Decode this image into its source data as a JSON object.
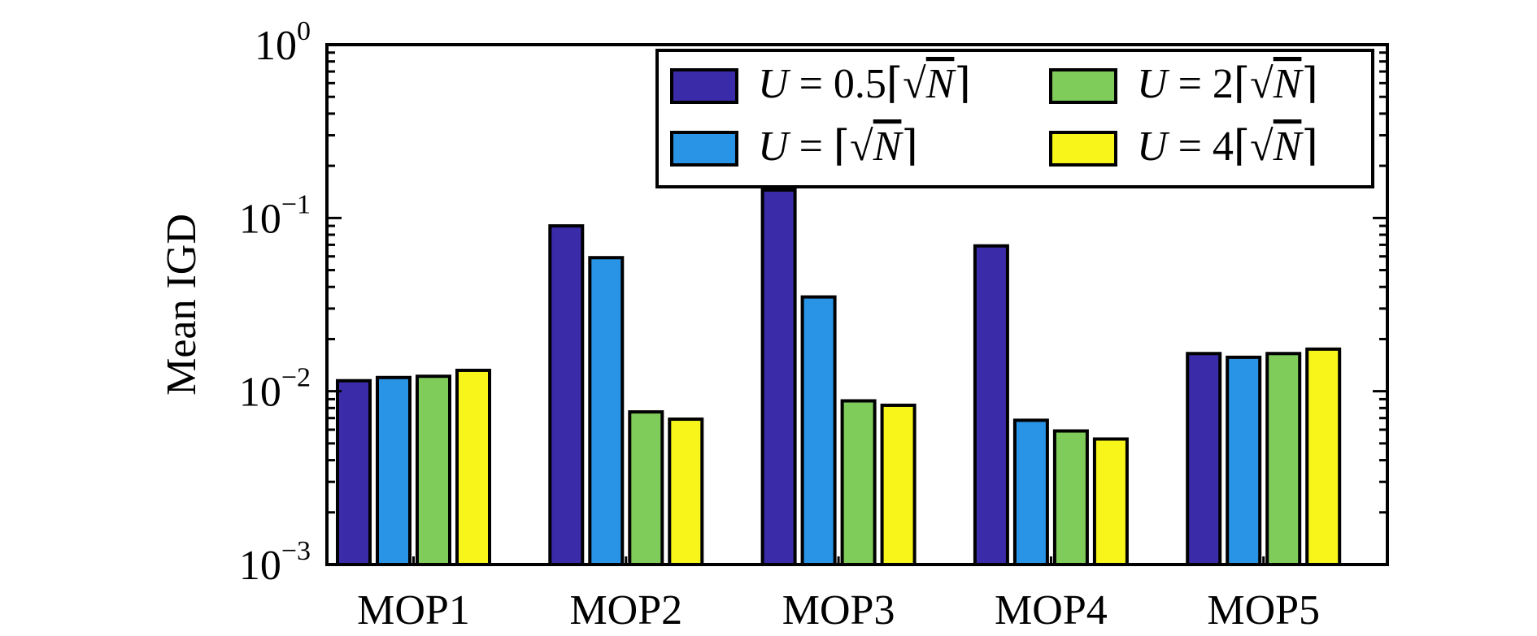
{
  "chart_data": {
    "type": "bar",
    "ylabel": "Mean IGD",
    "yscale": "log",
    "ylim": [
      0.001,
      1
    ],
    "y_ticks": [
      {
        "value": 0.001,
        "base": "10",
        "exp": "−3"
      },
      {
        "value": 0.01,
        "base": "10",
        "exp": "−2"
      },
      {
        "value": 0.1,
        "base": "10",
        "exp": "−1"
      },
      {
        "value": 1,
        "base": "10",
        "exp": "0"
      }
    ],
    "categories": [
      "MOP1",
      "MOP2",
      "MOP3",
      "MOP4",
      "MOP5"
    ],
    "series": [
      {
        "name": "U = 0.5⌈√N⌉",
        "coef": "0.5",
        "color": "#3a2ba8",
        "values": [
          0.0115,
          0.09,
          0.145,
          0.069,
          0.0165
        ]
      },
      {
        "name": "U = ⌈√N⌉",
        "coef": "",
        "color": "#2994e6",
        "values": [
          0.012,
          0.059,
          0.035,
          0.0068,
          0.0157
        ]
      },
      {
        "name": "U = 2⌈√N⌉",
        "coef": "2",
        "color": "#7fcc5a",
        "values": [
          0.0122,
          0.0076,
          0.0088,
          0.0059,
          0.0165
        ]
      },
      {
        "name": "U = 4⌈√N⌉",
        "coef": "4",
        "color": "#f8f51a",
        "values": [
          0.0132,
          0.0069,
          0.0083,
          0.0053,
          0.0175
        ]
      }
    ],
    "legend_position": "top-right",
    "legend_columns": 2,
    "grid": false
  }
}
